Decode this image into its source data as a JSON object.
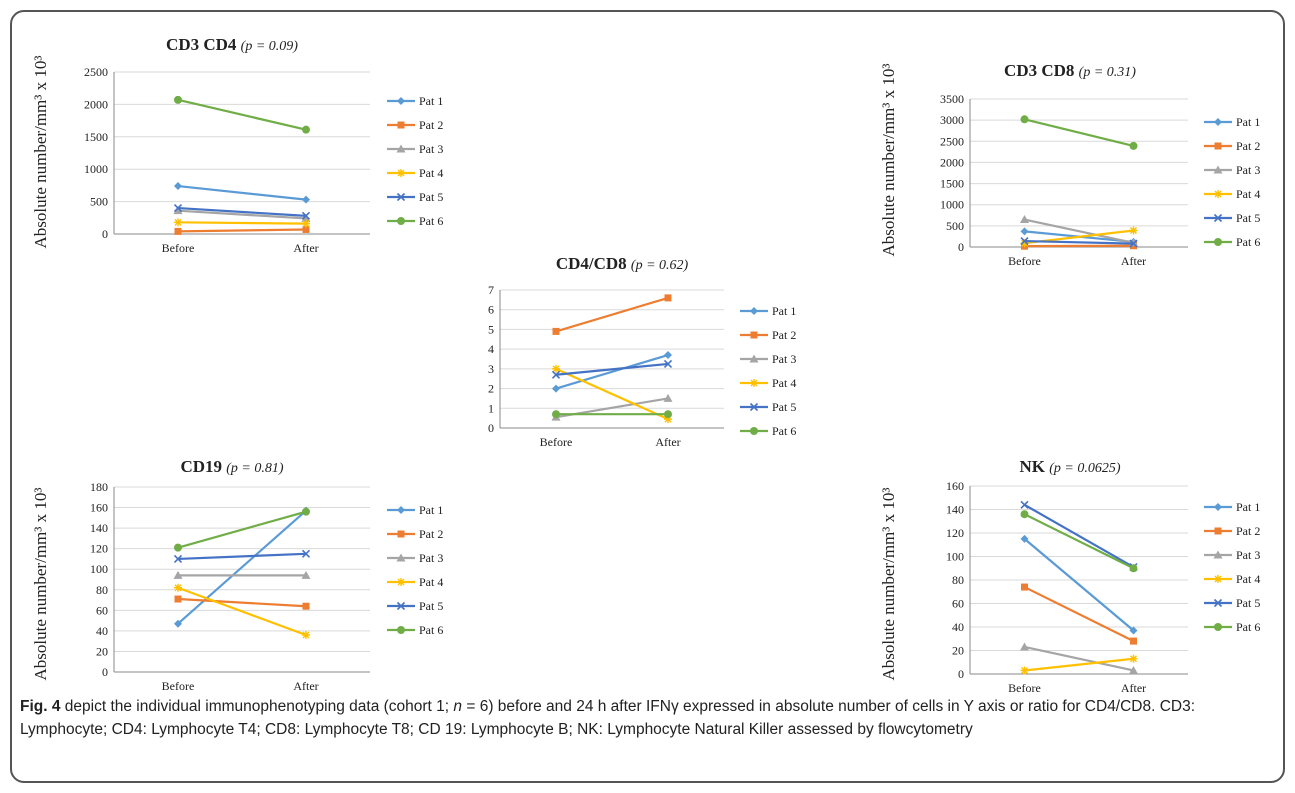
{
  "legend_colors": [
    "#5b9bd5",
    "#ed7d31",
    "#a5a5a5",
    "#ffc000",
    "#4472c4",
    "#70ad47"
  ],
  "chart_data": [
    {
      "id": "cd3cd4",
      "type": "line",
      "title": "CD3 CD4",
      "pvalue": "(p = 0.09)",
      "ylabel": "Absolute number/mm³ x 10³",
      "categories": [
        "Before",
        "After"
      ],
      "ylim": [
        0,
        2500
      ],
      "yticks": [
        0,
        500,
        1000,
        1500,
        2000,
        2500
      ],
      "series": [
        {
          "name": "Pat 1",
          "marker": "diamond",
          "values": [
            740,
            530
          ]
        },
        {
          "name": "Pat 2",
          "marker": "square",
          "values": [
            40,
            70
          ]
        },
        {
          "name": "Pat 3",
          "marker": "triangle",
          "values": [
            360,
            240
          ]
        },
        {
          "name": "Pat 4",
          "marker": "star",
          "values": [
            180,
            160
          ]
        },
        {
          "name": "Pat 5",
          "marker": "x",
          "values": [
            400,
            280
          ]
        },
        {
          "name": "Pat 6",
          "marker": "circle",
          "values": [
            2070,
            1610
          ]
        }
      ]
    },
    {
      "id": "cd3cd8",
      "type": "line",
      "title": "CD3 CD8",
      "pvalue": "(p = 0.31)",
      "ylabel": "Absolute number/mm³ x 10³",
      "categories": [
        "Before",
        "After"
      ],
      "ylim": [
        0,
        3500
      ],
      "yticks": [
        0,
        500,
        1000,
        1500,
        2000,
        2500,
        3000,
        3500
      ],
      "series": [
        {
          "name": "Pat 1",
          "marker": "diamond",
          "values": [
            370,
            120
          ]
        },
        {
          "name": "Pat 2",
          "marker": "square",
          "values": [
            20,
            30
          ]
        },
        {
          "name": "Pat 3",
          "marker": "triangle",
          "values": [
            650,
            100
          ]
        },
        {
          "name": "Pat 4",
          "marker": "star",
          "values": [
            90,
            390
          ]
        },
        {
          "name": "Pat 5",
          "marker": "x",
          "values": [
            140,
            80
          ]
        },
        {
          "name": "Pat 6",
          "marker": "circle",
          "values": [
            3020,
            2390
          ]
        }
      ]
    },
    {
      "id": "cd4cd8",
      "type": "line",
      "title": "CD4/CD8",
      "pvalue": "(p = 0.62)",
      "ylabel": "",
      "categories": [
        "Before",
        "After"
      ],
      "ylim": [
        0,
        7
      ],
      "yticks": [
        0,
        1,
        2,
        3,
        4,
        5,
        6,
        7
      ],
      "series": [
        {
          "name": "Pat 1",
          "marker": "diamond",
          "values": [
            2.0,
            3.7
          ]
        },
        {
          "name": "Pat 2",
          "marker": "square",
          "values": [
            4.9,
            6.6
          ]
        },
        {
          "name": "Pat 3",
          "marker": "triangle",
          "values": [
            0.55,
            1.5
          ]
        },
        {
          "name": "Pat 4",
          "marker": "star",
          "values": [
            3.0,
            0.45
          ]
        },
        {
          "name": "Pat 5",
          "marker": "x",
          "values": [
            2.7,
            3.25
          ]
        },
        {
          "name": "Pat 6",
          "marker": "circle",
          "values": [
            0.7,
            0.7
          ]
        }
      ]
    },
    {
      "id": "cd19",
      "type": "line",
      "title": "CD19",
      "pvalue": "(p = 0.81)",
      "ylabel": "Absolute number/mm³ x 10³",
      "categories": [
        "Before",
        "After"
      ],
      "ylim": [
        0,
        180
      ],
      "yticks": [
        0,
        20,
        40,
        60,
        80,
        100,
        120,
        140,
        160,
        180
      ],
      "series": [
        {
          "name": "Pat 1",
          "marker": "diamond",
          "values": [
            47,
            157
          ]
        },
        {
          "name": "Pat 2",
          "marker": "square",
          "values": [
            71,
            64
          ]
        },
        {
          "name": "Pat 3",
          "marker": "triangle",
          "values": [
            94,
            94
          ]
        },
        {
          "name": "Pat 4",
          "marker": "star",
          "values": [
            82,
            36
          ]
        },
        {
          "name": "Pat 5",
          "marker": "x",
          "values": [
            110,
            115
          ]
        },
        {
          "name": "Pat 6",
          "marker": "circle",
          "values": [
            121,
            156
          ]
        }
      ]
    },
    {
      "id": "nk",
      "type": "line",
      "title": "NK",
      "pvalue": "(p = 0.0625)",
      "ylabel": "Absolute number/mm³ x 10³",
      "categories": [
        "Before",
        "After"
      ],
      "ylim": [
        0,
        160
      ],
      "yticks": [
        0,
        20,
        40,
        60,
        80,
        100,
        120,
        140,
        160
      ],
      "series": [
        {
          "name": "Pat 1",
          "marker": "diamond",
          "values": [
            115,
            37
          ]
        },
        {
          "name": "Pat 2",
          "marker": "square",
          "values": [
            74,
            28
          ]
        },
        {
          "name": "Pat 3",
          "marker": "triangle",
          "values": [
            23,
            3
          ]
        },
        {
          "name": "Pat 4",
          "marker": "star",
          "values": [
            3,
            13
          ]
        },
        {
          "name": "Pat 5",
          "marker": "x",
          "values": [
            144,
            91
          ]
        },
        {
          "name": "Pat 6",
          "marker": "circle",
          "values": [
            136,
            90
          ]
        }
      ]
    }
  ],
  "caption": {
    "label": "Fig. 4",
    "text_before_italic": " depict the individual immunophenotyping data (cohort 1; ",
    "italic": "n",
    "text_after_italic": " = 6) before and 24 h after IFNγ expressed in absolute number of cells in Y axis or ratio for CD4/CD8. CD3: Lymphocyte; CD4: Lymphocyte T4; CD8: Lymphocyte T8; CD 19: Lymphocyte B; NK: Lymphocyte Natural Killer assessed by flowcytometry"
  }
}
